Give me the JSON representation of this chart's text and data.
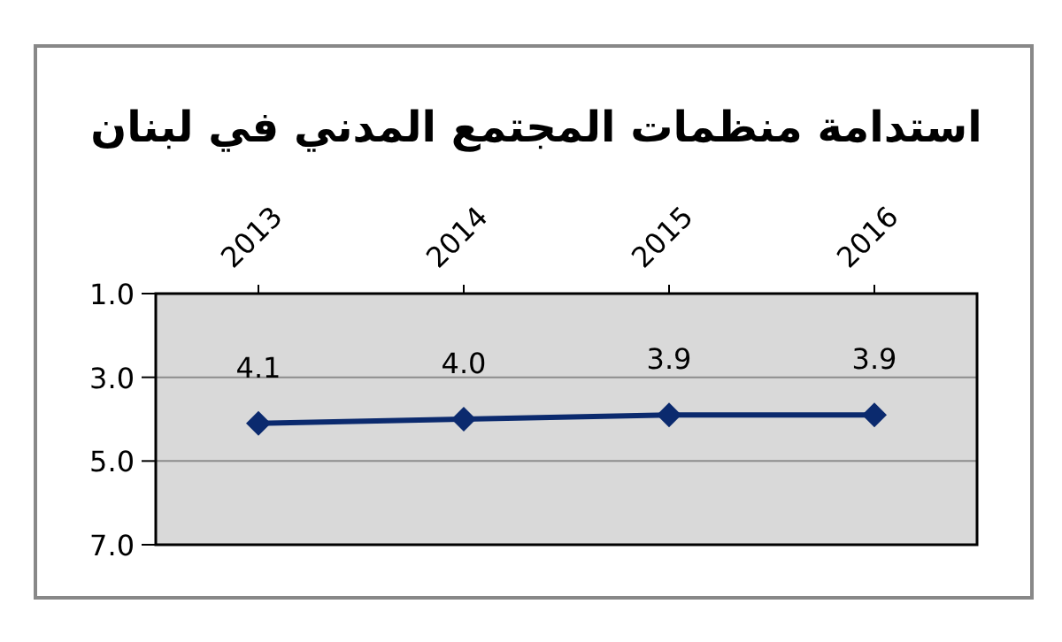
{
  "chart_data": {
    "type": "line",
    "title": "استدامة منظمات المجتمع المدني في لبنان",
    "categories": [
      "2013",
      "2014",
      "2015",
      "2016"
    ],
    "series": [
      {
        "color": "#0b2a6e",
        "values": [
          4.1,
          4.0,
          3.9,
          3.9
        ],
        "value_labels": [
          "4.1",
          "4.0",
          "3.9",
          "3.9"
        ]
      }
    ],
    "ylim": [
      7,
      1
    ],
    "yticks": [
      {
        "value": 1,
        "label": "1.0"
      },
      {
        "value": 3,
        "label": "3.0"
      },
      {
        "value": 5,
        "label": "5.0"
      },
      {
        "value": 7,
        "label": "7.0"
      }
    ],
    "grid": "y",
    "marker": "diamond",
    "line_style": "solid"
  }
}
